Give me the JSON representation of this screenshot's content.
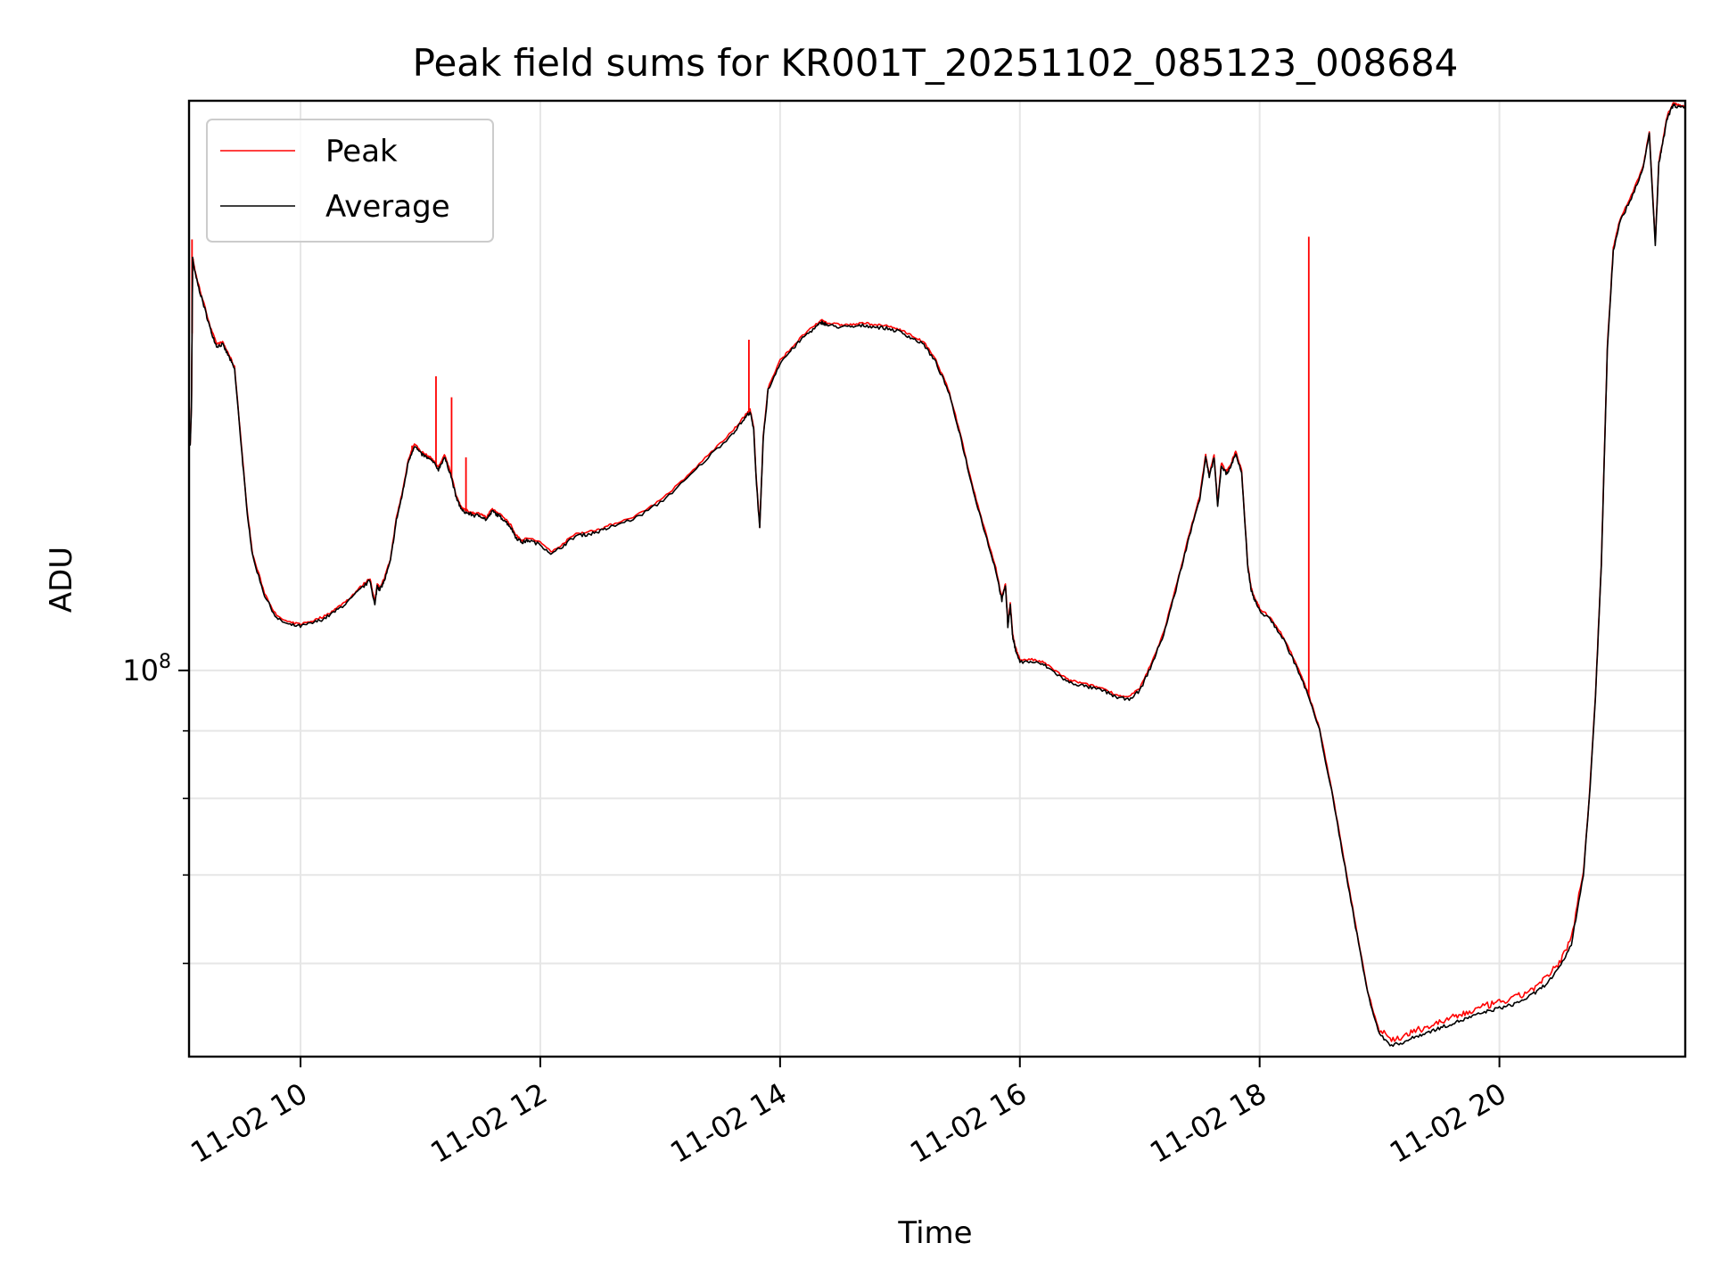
{
  "chart_data": {
    "type": "line",
    "title": "Peak field sums for KR001T_20251102_085123_008684",
    "xlabel": "Time",
    "ylabel": "ADU",
    "yscale": "log",
    "xlim": [
      9.07,
      21.55
    ],
    "ylim": [
      51000000,
      270000000
    ],
    "grid": true,
    "legend": "top-left",
    "x_ticks": [
      {
        "value": 10,
        "label": "11-02 10"
      },
      {
        "value": 12,
        "label": "11-02 12"
      },
      {
        "value": 14,
        "label": "11-02 14"
      },
      {
        "value": 16,
        "label": "11-02 16"
      },
      {
        "value": 18,
        "label": "11-02 18"
      },
      {
        "value": 20,
        "label": "11-02 20"
      }
    ],
    "y_major_ticks": [
      {
        "value": 100000000,
        "base": "10",
        "exp": "8"
      }
    ],
    "y_minor_ticks": [
      60000000,
      70000000,
      80000000,
      90000000
    ],
    "series": [
      {
        "name": "Average",
        "color": "#000000",
        "x": [
          9.07,
          9.08,
          9.09,
          9.1,
          9.12,
          9.15,
          9.2,
          9.25,
          9.3,
          9.35,
          9.4,
          9.45,
          9.5,
          9.55,
          9.6,
          9.7,
          9.8,
          9.9,
          10.0,
          10.1,
          10.2,
          10.3,
          10.4,
          10.5,
          10.58,
          10.62,
          10.64,
          10.66,
          10.7,
          10.75,
          10.8,
          10.85,
          10.9,
          10.95,
          11.0,
          11.05,
          11.1,
          11.15,
          11.2,
          11.25,
          11.3,
          11.35,
          11.4,
          11.45,
          11.5,
          11.55,
          11.6,
          11.65,
          11.7,
          11.75,
          11.8,
          11.85,
          11.9,
          12.0,
          12.1,
          12.2,
          12.3,
          12.4,
          12.5,
          12.6,
          12.8,
          13.0,
          13.2,
          13.4,
          13.6,
          13.7,
          13.75,
          13.78,
          13.8,
          13.83,
          13.86,
          13.9,
          14.0,
          14.1,
          14.2,
          14.3,
          14.35,
          14.4,
          14.5,
          14.6,
          14.7,
          14.8,
          14.9,
          15.0,
          15.1,
          15.2,
          15.3,
          15.4,
          15.5,
          15.6,
          15.7,
          15.8,
          15.85,
          15.88,
          15.9,
          15.92,
          15.94,
          15.96,
          16.0,
          16.1,
          16.2,
          16.3,
          16.4,
          16.5,
          16.6,
          16.7,
          16.8,
          16.9,
          17.0,
          17.1,
          17.2,
          17.3,
          17.4,
          17.5,
          17.55,
          17.58,
          17.62,
          17.65,
          17.68,
          17.72,
          17.75,
          17.8,
          17.85,
          17.9,
          17.93,
          17.96,
          18.0,
          18.1,
          18.2,
          18.3,
          18.4,
          18.5,
          18.6,
          18.7,
          18.8,
          18.9,
          19.0,
          19.1,
          19.2,
          19.3,
          19.4,
          19.5,
          19.6,
          19.7,
          19.8,
          19.9,
          20.0,
          20.1,
          20.2,
          20.3,
          20.4,
          20.5,
          20.6,
          20.7,
          20.75,
          20.8,
          20.85,
          20.9,
          20.95,
          21.0,
          21.1,
          21.2,
          21.25,
          21.3,
          21.33,
          21.36,
          21.4,
          21.45,
          21.5,
          21.55
        ],
        "y": [
          150000000,
          148000000,
          158000000,
          205000000,
          200000000,
          195000000,
          188000000,
          181000000,
          176000000,
          176500000,
          173000000,
          169000000,
          150000000,
          133000000,
          122000000,
          114000000,
          109500000,
          108300000,
          108000000,
          108600000,
          109500000,
          111000000,
          112800000,
          115200000,
          117000000,
          112000000,
          116000000,
          115000000,
          117000000,
          121000000,
          130000000,
          136000000,
          144000000,
          148000000,
          146000000,
          145000000,
          144000000,
          142000000,
          145000000,
          141000000,
          135000000,
          132000000,
          131500000,
          131000000,
          131000000,
          130000000,
          132000000,
          131000000,
          130000000,
          128500000,
          126000000,
          125000000,
          125500000,
          124500000,
          122500000,
          124500000,
          126500000,
          126800000,
          127500000,
          128500000,
          130500000,
          134000000,
          139000000,
          145000000,
          151000000,
          155000000,
          157000000,
          152000000,
          140000000,
          128000000,
          150000000,
          163000000,
          171000000,
          175000000,
          179000000,
          182000000,
          183500000,
          182500000,
          182000000,
          182000000,
          182500000,
          182000000,
          181500000,
          180500000,
          178500000,
          176500000,
          171000000,
          163000000,
          151000000,
          138000000,
          128000000,
          119000000,
          113000000,
          116000000,
          108000000,
          112000000,
          106000000,
          104000000,
          101500000,
          101500000,
          101000000,
          99500000,
          98000000,
          97500000,
          97000000,
          96500000,
          95500000,
          95000000,
          96500000,
          101000000,
          106500000,
          115000000,
          125000000,
          135000000,
          145000000,
          140000000,
          145000000,
          133000000,
          143000000,
          141000000,
          142000000,
          146000000,
          141000000,
          120000000,
          115000000,
          113000000,
          111000000,
          109000000,
          105500000,
          101000000,
          96000000,
          90000000,
          81000000,
          72000000,
          64000000,
          57000000,
          53000000,
          52000000,
          52300000,
          52800000,
          53200000,
          53600000,
          54000000,
          54400000,
          54800000,
          55200000,
          55500000,
          55800000,
          56300000,
          57000000,
          58000000,
          59500000,
          62000000,
          70000000,
          80000000,
          95000000,
          120000000,
          175000000,
          208000000,
          218000000,
          228000000,
          240000000,
          255000000,
          210000000,
          242000000,
          250000000,
          262000000,
          268000000,
          267000000,
          266500000
        ]
      },
      {
        "name": "Peak",
        "color": "#ff0000",
        "spikes": [
          {
            "x": 9.095,
            "y": 212000000
          },
          {
            "x": 10.93,
            "y": 148000000
          },
          {
            "x": 11.13,
            "y": 167000000
          },
          {
            "x": 11.26,
            "y": 161000000
          },
          {
            "x": 11.38,
            "y": 145000000
          },
          {
            "x": 13.74,
            "y": 178000000
          },
          {
            "x": 18.41,
            "y": 213000000
          }
        ]
      }
    ]
  }
}
